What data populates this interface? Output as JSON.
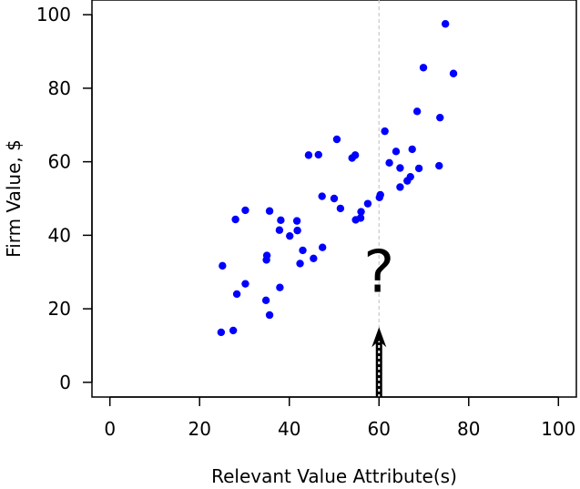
{
  "chart_data": {
    "type": "scatter",
    "title": "",
    "xlabel": "Relevant Value Attribute(s)",
    "ylabel": "Firm Value, $",
    "xlim": [
      -4,
      104
    ],
    "ylim": [
      -4,
      104
    ],
    "xticks": [
      0,
      20,
      40,
      60,
      80,
      100
    ],
    "yticks": [
      0,
      20,
      40,
      60,
      80,
      100
    ],
    "grid": false,
    "point_color": "#0000ff",
    "series": [
      {
        "points": [
          [
            24.8,
            13.6
          ],
          [
            27.5,
            14.1
          ],
          [
            25.1,
            31.7
          ],
          [
            28.3,
            24.0
          ],
          [
            30.2,
            26.8
          ],
          [
            28.0,
            44.3
          ],
          [
            30.2,
            46.8
          ],
          [
            34.8,
            22.3
          ],
          [
            34.9,
            33.3
          ],
          [
            35.0,
            34.5
          ],
          [
            35.6,
            18.3
          ],
          [
            35.6,
            46.6
          ],
          [
            37.9,
            25.8
          ],
          [
            37.8,
            41.4
          ],
          [
            38.1,
            44.1
          ],
          [
            40.1,
            39.8
          ],
          [
            41.7,
            43.9
          ],
          [
            41.8,
            41.3
          ],
          [
            42.4,
            32.3
          ],
          [
            43.0,
            35.9
          ],
          [
            44.3,
            61.8
          ],
          [
            45.4,
            33.7
          ],
          [
            46.5,
            61.9
          ],
          [
            47.3,
            50.6
          ],
          [
            47.4,
            36.7
          ],
          [
            50.0,
            50.0
          ],
          [
            50.6,
            66.1
          ],
          [
            51.4,
            47.3
          ],
          [
            54.0,
            61.0
          ],
          [
            54.7,
            61.8
          ],
          [
            54.8,
            44.2
          ],
          [
            55.9,
            44.7
          ],
          [
            56.0,
            46.4
          ],
          [
            57.5,
            48.6
          ],
          [
            60.1,
            50.3
          ],
          [
            60.3,
            51.0
          ],
          [
            61.3,
            68.3
          ],
          [
            62.3,
            59.7
          ],
          [
            63.8,
            62.8
          ],
          [
            64.7,
            58.3
          ],
          [
            64.7,
            53.1
          ],
          [
            66.3,
            54.8
          ],
          [
            67.0,
            55.9
          ],
          [
            67.4,
            63.4
          ],
          [
            68.5,
            73.7
          ],
          [
            68.9,
            58.2
          ],
          [
            69.9,
            85.6
          ],
          [
            73.4,
            58.9
          ],
          [
            73.6,
            72.0
          ],
          [
            74.8,
            97.5
          ],
          [
            76.6,
            84.0
          ]
        ]
      }
    ],
    "reference_line": {
      "x": 60,
      "color": "#c8c8c8",
      "style": "dashed"
    },
    "annotations": [
      {
        "type": "arrow",
        "x": 60,
        "y_from": -4,
        "y_to": 15
      },
      {
        "type": "text",
        "text": "?",
        "x": 60,
        "y": 30
      }
    ]
  }
}
